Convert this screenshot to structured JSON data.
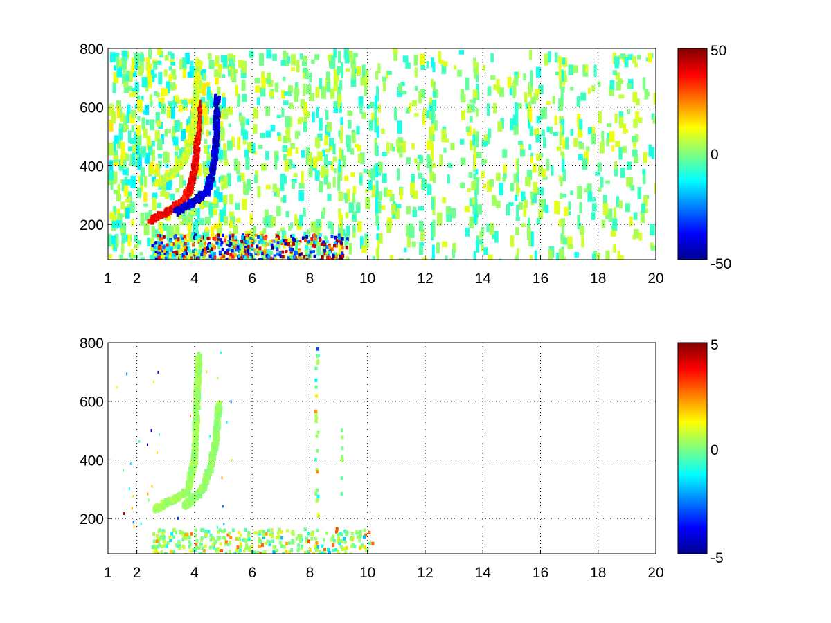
{
  "colormap": "jet",
  "chart_data": [
    {
      "type": "heatmap",
      "title": "",
      "xlabel": "",
      "ylabel": "",
      "xlim": [
        1,
        20
      ],
      "ylim": [
        80,
        800
      ],
      "xticks": [
        "1",
        "2",
        "4",
        "6",
        "8",
        "10",
        "12",
        "14",
        "16",
        "18",
        "20"
      ],
      "yticks": [
        "200",
        "400",
        "600",
        "800"
      ],
      "grid": true,
      "colorbar": {
        "min": -50,
        "max": 50,
        "ticks": [
          "50",
          "0",
          "-50"
        ]
      },
      "features": [
        {
          "name": "positive-arc",
          "points": [
            [
              2.4,
              220
            ],
            [
              3.0,
              250
            ],
            [
              3.5,
              280
            ],
            [
              3.8,
              330
            ],
            [
              4.0,
              420
            ],
            [
              4.05,
              520
            ],
            [
              4.1,
              620
            ]
          ],
          "value": 38
        },
        {
          "name": "negative-arc",
          "points": [
            [
              3.3,
              250
            ],
            [
              3.9,
              280
            ],
            [
              4.4,
              320
            ],
            [
              4.6,
              400
            ],
            [
              4.7,
              500
            ],
            [
              4.75,
              640
            ]
          ],
          "value": -42
        },
        {
          "name": "faint-upper-arc",
          "points": [
            [
              2.6,
              340
            ],
            [
              3.2,
              380
            ],
            [
              3.6,
              430
            ],
            [
              3.9,
              520
            ],
            [
              4.0,
              640
            ],
            [
              4.1,
              760
            ]
          ],
          "value": 8
        },
        {
          "name": "low-band",
          "x": [
            2.5,
            9.3
          ],
          "y": [
            80,
            170
          ],
          "value_range": [
            -50,
            50
          ]
        }
      ],
      "scatter_density": "high"
    },
    {
      "type": "heatmap",
      "title": "",
      "xlabel": "",
      "ylabel": "",
      "xlim": [
        1,
        20
      ],
      "ylim": [
        80,
        800
      ],
      "xticks": [
        "1",
        "2",
        "4",
        "6",
        "8",
        "10",
        "12",
        "14",
        "16",
        "18",
        "20"
      ],
      "yticks": [
        "200",
        "400",
        "600",
        "800"
      ],
      "grid": true,
      "colorbar": {
        "min": -5,
        "max": 5,
        "ticks": [
          "5",
          "0",
          "-5"
        ]
      },
      "features": [
        {
          "name": "green-arc",
          "points": [
            [
              2.6,
              240
            ],
            [
              3.2,
              270
            ],
            [
              3.7,
              300
            ],
            [
              3.95,
              400
            ],
            [
              4.0,
              520
            ],
            [
              4.05,
              640
            ],
            [
              4.1,
              760
            ]
          ],
          "value": 0.3
        },
        {
          "name": "green-arc-2",
          "points": [
            [
              3.6,
              250
            ],
            [
              4.2,
              300
            ],
            [
              4.5,
              380
            ],
            [
              4.7,
              480
            ],
            [
              4.8,
              600
            ]
          ],
          "value": 0.2
        },
        {
          "name": "low-band",
          "x": [
            2.5,
            10.2
          ],
          "y": [
            80,
            170
          ],
          "value_range": [
            -2,
            3
          ]
        },
        {
          "name": "vline-9",
          "x": [
            9.05,
            9.1
          ],
          "y": [
            230,
            520
          ],
          "value_range": [
            -4,
            4
          ]
        },
        {
          "name": "vline-8",
          "x": [
            8.15,
            8.25
          ],
          "y": [
            200,
            790
          ],
          "value_range": [
            -3,
            3
          ]
        }
      ],
      "scatter_density": "low"
    }
  ]
}
